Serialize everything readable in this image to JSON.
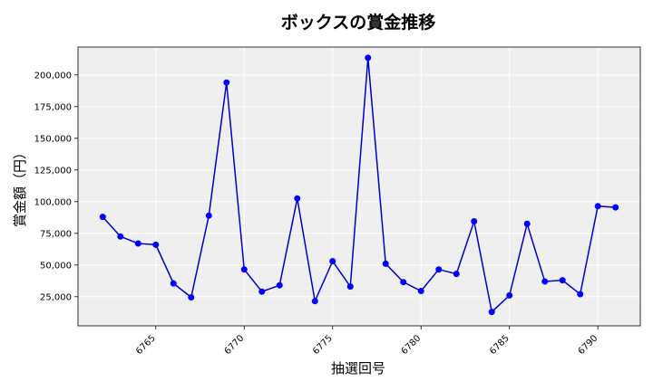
{
  "chart_data": {
    "type": "line",
    "title": "ボックスの賞金推移",
    "xlabel": "抽選回号",
    "ylabel": "賞金額（円）",
    "xlim": [
      6760.6,
      6792.4
    ],
    "ylim": [
      2000,
      222000
    ],
    "xticks": [
      6765,
      6770,
      6775,
      6780,
      6785,
      6790
    ],
    "yticks": [
      25000,
      50000,
      75000,
      100000,
      125000,
      150000,
      175000,
      200000
    ],
    "grid": true,
    "line_color": "#0000cc",
    "marker_color": "#0000ff",
    "series": [
      {
        "x": [
          6762,
          6763,
          6764,
          6765,
          6766,
          6767,
          6768,
          6769,
          6770,
          6771,
          6772,
          6773,
          6774,
          6775,
          6776,
          6777,
          6778,
          6779,
          6780,
          6781,
          6782,
          6783,
          6784,
          6785,
          6786,
          6787,
          6788,
          6789,
          6790,
          6791
        ],
        "values": [
          88000,
          72500,
          67000,
          66000,
          35500,
          24500,
          89000,
          194000,
          46500,
          29000,
          34000,
          102500,
          21500,
          53000,
          33000,
          213500,
          51000,
          36500,
          29500,
          46500,
          43000,
          84500,
          13000,
          26000,
          82500,
          37000,
          38000,
          27000,
          96500,
          95500
        ]
      }
    ]
  }
}
